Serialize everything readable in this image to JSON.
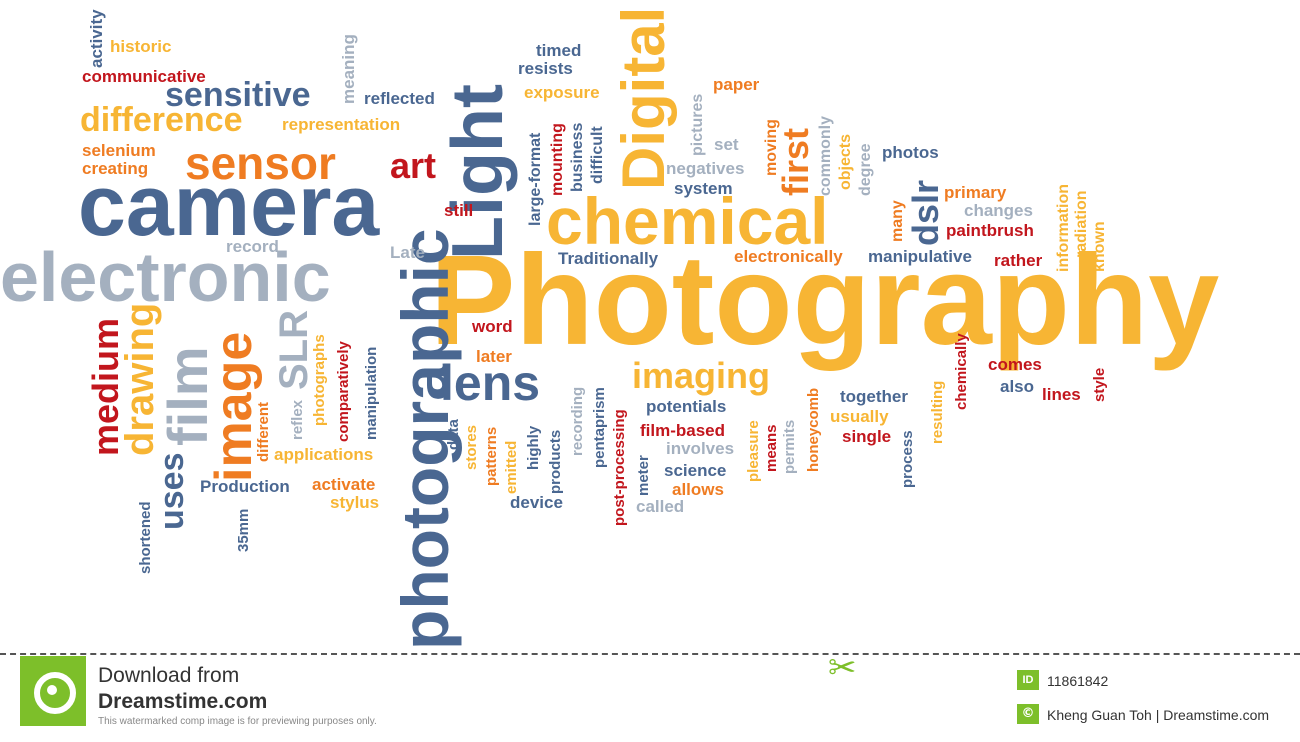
{
  "words": [
    {
      "text": "Photography",
      "color": "yellow"
    },
    {
      "text": "camera",
      "color": "blue"
    },
    {
      "text": "electronic",
      "color": "grey"
    },
    {
      "text": "chemical",
      "color": "yellow"
    },
    {
      "text": "Light",
      "color": "blue"
    },
    {
      "text": "Digital",
      "color": "yellow"
    },
    {
      "text": "photographic",
      "color": "blue"
    },
    {
      "text": "lens",
      "color": "blue"
    },
    {
      "text": "sensor",
      "color": "orange"
    },
    {
      "text": "art",
      "color": "red"
    },
    {
      "text": "film",
      "color": "grey"
    },
    {
      "text": "image",
      "color": "orange"
    },
    {
      "text": "sensitive",
      "color": "blue"
    },
    {
      "text": "difference",
      "color": "yellow"
    },
    {
      "text": "imaging",
      "color": "yellow"
    },
    {
      "text": "drawing",
      "color": "yellow"
    },
    {
      "text": "medium",
      "color": "red"
    },
    {
      "text": "uses",
      "color": "blue"
    },
    {
      "text": "SLR",
      "color": "grey"
    },
    {
      "text": "dslr",
      "color": "blue"
    },
    {
      "text": "first",
      "color": "orange"
    },
    {
      "text": "historic",
      "color": "yellow"
    },
    {
      "text": "activity",
      "color": "blue"
    },
    {
      "text": "communicative",
      "color": "red"
    },
    {
      "text": "meaning",
      "color": "grey"
    },
    {
      "text": "reflected",
      "color": "blue"
    },
    {
      "text": "representation",
      "color": "yellow"
    },
    {
      "text": "selenium",
      "color": "orange"
    },
    {
      "text": "creating",
      "color": "orange"
    },
    {
      "text": "timed",
      "color": "blue"
    },
    {
      "text": "resists",
      "color": "blue"
    },
    {
      "text": "exposure",
      "color": "yellow"
    },
    {
      "text": "paper",
      "color": "orange"
    },
    {
      "text": "large-format",
      "color": "blue"
    },
    {
      "text": "mounting",
      "color": "red"
    },
    {
      "text": "business",
      "color": "blue"
    },
    {
      "text": "difficult",
      "color": "blue"
    },
    {
      "text": "pictures",
      "color": "grey"
    },
    {
      "text": "set",
      "color": "grey"
    },
    {
      "text": "moving",
      "color": "orange"
    },
    {
      "text": "commonly",
      "color": "grey"
    },
    {
      "text": "objects",
      "color": "yellow"
    },
    {
      "text": "degree",
      "color": "grey"
    },
    {
      "text": "photos",
      "color": "blue"
    },
    {
      "text": "information",
      "color": "yellow"
    },
    {
      "text": "radiation",
      "color": "yellow"
    },
    {
      "text": "known",
      "color": "yellow"
    },
    {
      "text": "negatives",
      "color": "grey"
    },
    {
      "text": "system",
      "color": "blue"
    },
    {
      "text": "primary",
      "color": "orange"
    },
    {
      "text": "changes",
      "color": "grey"
    },
    {
      "text": "paintbrush",
      "color": "red"
    },
    {
      "text": "many",
      "color": "orange"
    },
    {
      "text": "still",
      "color": "red"
    },
    {
      "text": "record",
      "color": "grey"
    },
    {
      "text": "Late",
      "color": "grey"
    },
    {
      "text": "Traditionally",
      "color": "blue"
    },
    {
      "text": "electronically",
      "color": "orange"
    },
    {
      "text": "manipulative",
      "color": "blue"
    },
    {
      "text": "rather",
      "color": "red"
    },
    {
      "text": "word",
      "color": "red"
    },
    {
      "text": "later",
      "color": "orange"
    },
    {
      "text": "photographs",
      "color": "yellow"
    },
    {
      "text": "comparatively",
      "color": "red"
    },
    {
      "text": "manipulation",
      "color": "blue"
    },
    {
      "text": "reflex",
      "color": "grey"
    },
    {
      "text": "different",
      "color": "orange"
    },
    {
      "text": "applications",
      "color": "yellow"
    },
    {
      "text": "Production",
      "color": "blue"
    },
    {
      "text": "activate",
      "color": "orange"
    },
    {
      "text": "stylus",
      "color": "yellow"
    },
    {
      "text": "35mm",
      "color": "blue"
    },
    {
      "text": "shortened",
      "color": "blue"
    },
    {
      "text": "data",
      "color": "blue"
    },
    {
      "text": "stores",
      "color": "yellow"
    },
    {
      "text": "patterns",
      "color": "orange"
    },
    {
      "text": "emitted",
      "color": "yellow"
    },
    {
      "text": "highly",
      "color": "blue"
    },
    {
      "text": "products",
      "color": "blue"
    },
    {
      "text": "recording",
      "color": "grey"
    },
    {
      "text": "pentaprism",
      "color": "blue"
    },
    {
      "text": "post-processing",
      "color": "red"
    },
    {
      "text": "meter",
      "color": "blue"
    },
    {
      "text": "device",
      "color": "blue"
    },
    {
      "text": "called",
      "color": "grey"
    },
    {
      "text": "potentials",
      "color": "blue"
    },
    {
      "text": "film-based",
      "color": "red"
    },
    {
      "text": "involves",
      "color": "grey"
    },
    {
      "text": "science",
      "color": "blue"
    },
    {
      "text": "allows",
      "color": "orange"
    },
    {
      "text": "pleasure",
      "color": "yellow"
    },
    {
      "text": "means",
      "color": "red"
    },
    {
      "text": "permits",
      "color": "grey"
    },
    {
      "text": "honeycomb",
      "color": "orange"
    },
    {
      "text": "together",
      "color": "blue"
    },
    {
      "text": "usually",
      "color": "yellow"
    },
    {
      "text": "single",
      "color": "red"
    },
    {
      "text": "process",
      "color": "blue"
    },
    {
      "text": "resulting",
      "color": "yellow"
    },
    {
      "text": "chemically",
      "color": "red"
    },
    {
      "text": "comes",
      "color": "red"
    },
    {
      "text": "also",
      "color": "blue"
    },
    {
      "text": "lines",
      "color": "red"
    },
    {
      "text": "style",
      "color": "red"
    }
  ],
  "footer": {
    "download_line1": "Download from",
    "download_line2": "Dreamstime.com",
    "disclaimer": "This watermarked comp image is for previewing purposes only.",
    "id_badge": "ID",
    "image_id": "11861842",
    "copyright_badge": "©",
    "credit": "Kheng Guan Toh | Dreamstime.com"
  },
  "icons": [
    "dreamstime-logo-icon",
    "scissors-icon"
  ]
}
